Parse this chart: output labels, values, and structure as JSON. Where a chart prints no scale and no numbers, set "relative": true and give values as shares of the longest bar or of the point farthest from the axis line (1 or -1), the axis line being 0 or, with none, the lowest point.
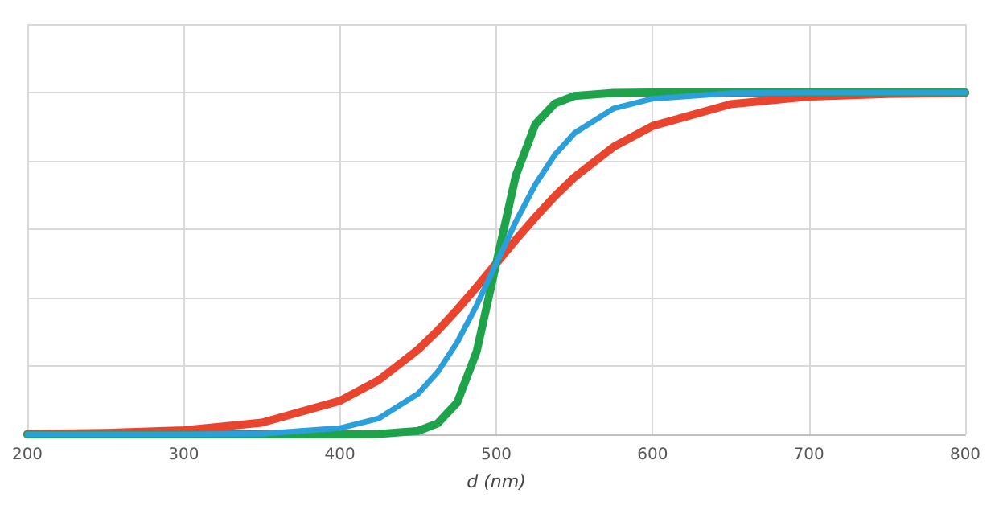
{
  "chart_data": {
    "type": "line",
    "xlabel": "d (nm)",
    "relative": true,
    "x": [
      200,
      250,
      300,
      350,
      400,
      425,
      450,
      462.5,
      475,
      487.5,
      500,
      512.5,
      525,
      537.5,
      550,
      575,
      600,
      650,
      700,
      750,
      800
    ],
    "series": [
      {
        "color": "#e8442e",
        "values": [
          0.001,
          0.004,
          0.012,
          0.034,
          0.098,
          0.159,
          0.248,
          0.303,
          0.365,
          0.431,
          0.5,
          0.569,
          0.635,
          0.697,
          0.752,
          0.841,
          0.902,
          0.966,
          0.988,
          0.996,
          0.999
        ]
      },
      {
        "color": "#1fa34a",
        "values": [
          0,
          0,
          0,
          0,
          0,
          0.001,
          0.01,
          0.032,
          0.093,
          0.243,
          0.5,
          0.757,
          0.907,
          0.968,
          0.99,
          0.999,
          1,
          1,
          1,
          1,
          1
        ]
      },
      {
        "color": "#2b9fd9",
        "values": [
          0,
          0,
          0,
          0.002,
          0.018,
          0.047,
          0.119,
          0.182,
          0.269,
          0.378,
          0.5,
          0.622,
          0.731,
          0.818,
          0.881,
          0.953,
          0.982,
          0.998,
          1,
          1,
          1
        ]
      }
    ],
    "xlim": [
      200,
      800
    ],
    "xticks": [
      200,
      300,
      400,
      500,
      600,
      700,
      800
    ],
    "grid": true,
    "marker": "none",
    "line_style": "solid"
  }
}
